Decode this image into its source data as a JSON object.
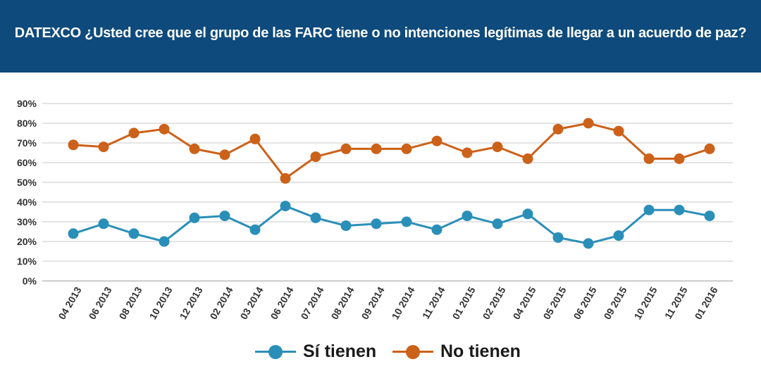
{
  "header": {
    "title": "DATEXCO ¿Usted cree que el grupo de las FARC tiene o no intenciones legítimas de llegar a un acuerdo de paz?",
    "background": "#0e4a7c"
  },
  "chart_data": {
    "type": "line",
    "title": "DATEXCO ¿Usted cree que el grupo de las FARC tiene o no intenciones legítimas de llegar a un acuerdo de paz?",
    "categories": [
      "04 2013",
      "06 2013",
      "08 2013",
      "10 2013",
      "12 2013",
      "02 2014",
      "03 2014",
      "06 2014",
      "07 2014",
      "08 2014",
      "09 2014",
      "10 2014",
      "11 2014",
      "01 2015",
      "02 2015",
      "04 2015",
      "05 2015",
      "06 2015",
      "09 2015",
      "10 2015",
      "11 2015",
      "01 2016"
    ],
    "series": [
      {
        "name": "Sí tienen",
        "color": "#2a8fb8",
        "values": [
          24,
          29,
          24,
          20,
          32,
          33,
          26,
          38,
          32,
          28,
          29,
          30,
          26,
          33,
          29,
          34,
          22,
          19,
          23,
          36,
          36,
          33
        ]
      },
      {
        "name": "No tienen",
        "color": "#cc6119",
        "values": [
          69,
          68,
          75,
          77,
          67,
          64,
          72,
          52,
          63,
          67,
          67,
          67,
          71,
          65,
          68,
          62,
          77,
          80,
          76,
          62,
          62,
          67
        ]
      }
    ],
    "ylim": [
      0,
      90
    ],
    "yticks": [
      0,
      10,
      20,
      30,
      40,
      50,
      60,
      70,
      80,
      90
    ],
    "ytick_labels": [
      "0%",
      "10%",
      "20%",
      "30%",
      "40%",
      "50%",
      "60%",
      "70%",
      "80%",
      "90%"
    ],
    "xlabel": "",
    "ylabel": "",
    "grid": true,
    "legend": "bottom-center"
  }
}
